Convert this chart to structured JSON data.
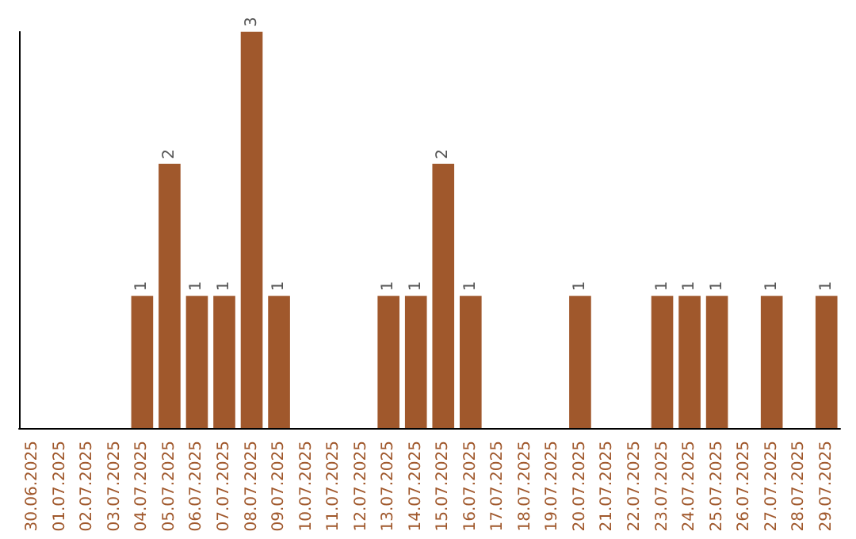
{
  "chart_data": {
    "type": "bar",
    "categories": [
      "30.06.2025",
      "01.07.2025",
      "02.07.2025",
      "03.07.2025",
      "04.07.2025",
      "05.07.2025",
      "06.07.2025",
      "07.07.2025",
      "08.07.2025",
      "09.07.2025",
      "10.07.2025",
      "11.07.2025",
      "12.07.2025",
      "13.07.2025",
      "14.07.2025",
      "15.07.2025",
      "16.07.2025",
      "17.07.2025",
      "18.07.2025",
      "19.07.2025",
      "20.07.2025",
      "21.07.2025",
      "22.07.2025",
      "23.07.2025",
      "24.07.2025",
      "25.07.2025",
      "26.07.2025",
      "27.07.2025",
      "28.07.2025",
      "29.07.2025"
    ],
    "values": [
      0,
      0,
      0,
      0,
      1,
      2,
      1,
      1,
      3,
      1,
      0,
      0,
      0,
      1,
      1,
      2,
      1,
      0,
      0,
      0,
      1,
      0,
      0,
      1,
      1,
      1,
      0,
      1,
      0,
      1
    ],
    "value_labels": [
      null,
      null,
      null,
      null,
      "1",
      "2",
      "1",
      "1",
      "3",
      "1",
      null,
      null,
      null,
      "1",
      "1",
      "2",
      "1",
      null,
      null,
      null,
      "1",
      null,
      null,
      "1",
      "1",
      "1",
      null,
      "1",
      null,
      "1"
    ],
    "color": "#a0582c",
    "tick_labels": "x",
    "grid": false
  }
}
